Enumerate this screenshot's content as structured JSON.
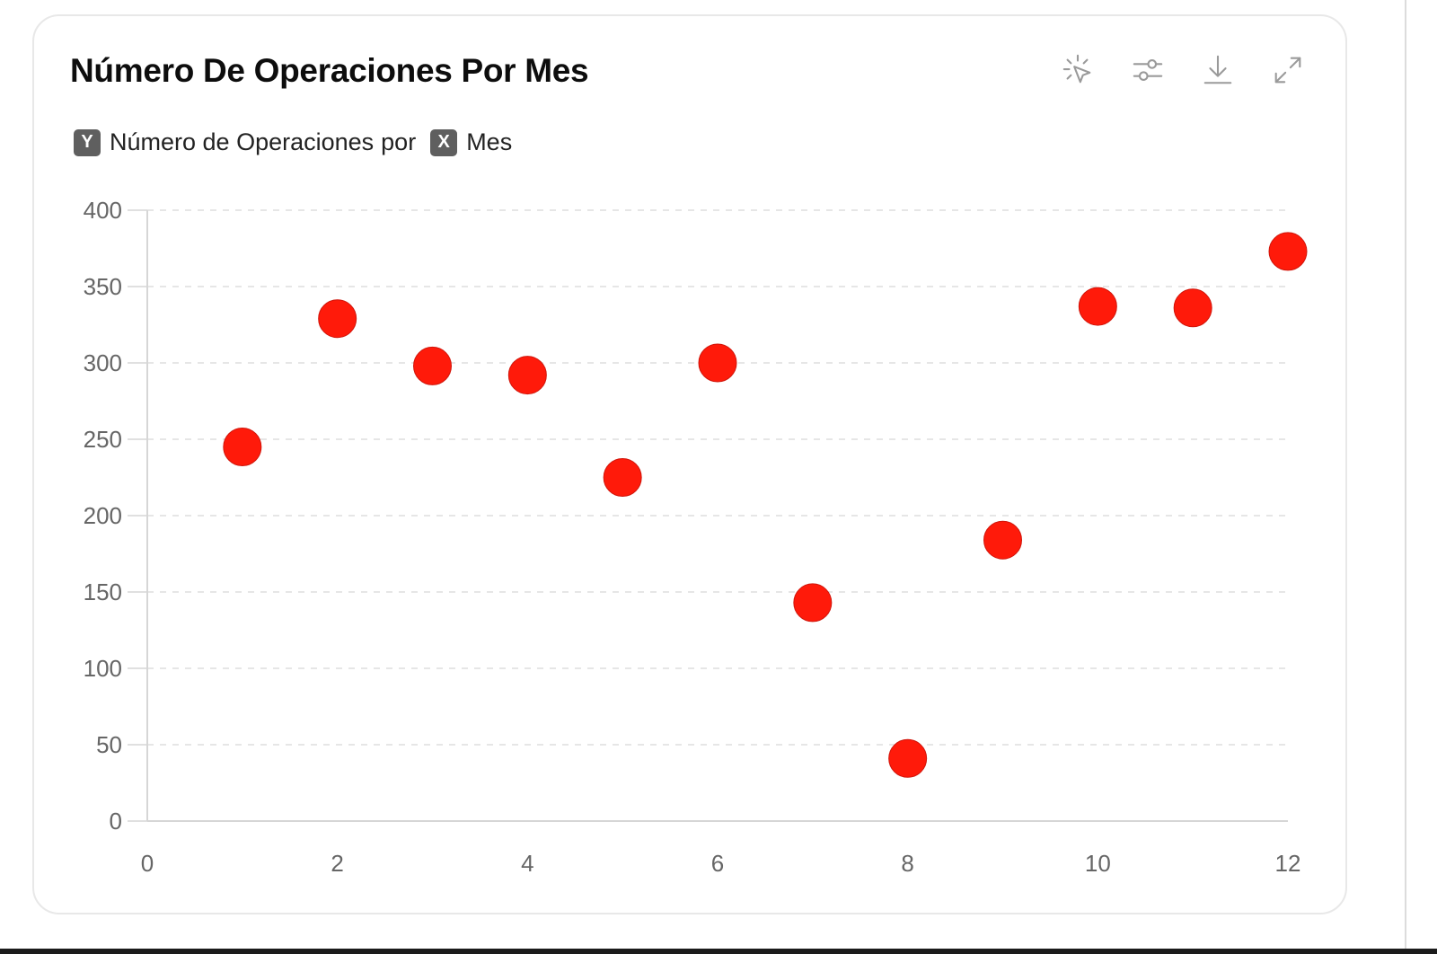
{
  "card": {
    "title": "Número De Operaciones Por Mes",
    "toolbar": [
      {
        "name": "interact-icon",
        "label": "Interact"
      },
      {
        "name": "settings-sliders-icon",
        "label": "Adjust"
      },
      {
        "name": "download-icon",
        "label": "Download"
      },
      {
        "name": "expand-icon",
        "label": "Expand"
      }
    ],
    "legend": {
      "y_badge": "Y",
      "y_label": "Número de Operaciones",
      "separator": "por",
      "x_badge": "X",
      "x_label": "Mes"
    }
  },
  "colors": {
    "point": "#ff1a0a",
    "grid": "#dddddd",
    "axis": "#d6d6d6",
    "tick_text": "#666666"
  },
  "chart_data": {
    "type": "scatter",
    "title": "Número De Operaciones Por Mes",
    "xlabel": "Mes",
    "ylabel": "Número de Operaciones",
    "x": [
      1,
      2,
      3,
      4,
      5,
      6,
      7,
      8,
      9,
      10,
      11,
      12
    ],
    "y": [
      245,
      329,
      298,
      292,
      225,
      300,
      143,
      41,
      184,
      337,
      336,
      373
    ],
    "series": [
      {
        "name": "Número de Operaciones por Mes",
        "x": [
          1,
          2,
          3,
          4,
          5,
          6,
          7,
          8,
          9,
          10,
          11,
          12
        ],
        "y": [
          245,
          329,
          298,
          292,
          225,
          300,
          143,
          41,
          184,
          337,
          336,
          373
        ]
      }
    ],
    "xlim": [
      0,
      12
    ],
    "ylim": [
      0,
      400
    ],
    "x_ticks": [
      0,
      2,
      4,
      6,
      8,
      10,
      12
    ],
    "y_ticks": [
      0,
      50,
      100,
      150,
      200,
      250,
      300,
      350,
      400
    ],
    "grid": "horizontal dashed",
    "legend_position": "top-left"
  }
}
